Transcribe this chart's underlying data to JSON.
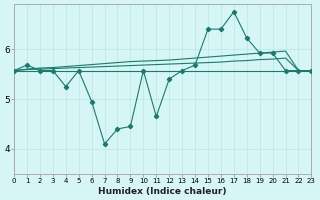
{
  "title": "",
  "xlabel": "Humidex (Indice chaleur)",
  "bg_color": "#d6f5f5",
  "grid_color": "#b8e8e0",
  "line_color": "#1a7a6e",
  "x_range": [
    0,
    23
  ],
  "y_range": [
    3.5,
    6.9
  ],
  "yticks": [
    4,
    5,
    6
  ],
  "xticks": [
    0,
    1,
    2,
    3,
    4,
    5,
    6,
    7,
    8,
    9,
    10,
    11,
    12,
    13,
    14,
    15,
    16,
    17,
    18,
    19,
    20,
    21,
    22,
    23
  ],
  "line_flat": [
    5.57,
    5.57,
    5.57,
    5.57,
    5.57,
    5.57,
    5.57,
    5.57,
    5.57,
    5.57,
    5.57,
    5.57,
    5.57,
    5.57,
    5.57,
    5.57,
    5.57,
    5.57,
    5.57,
    5.57,
    5.57,
    5.57,
    5.57,
    5.57
  ],
  "line_rise1": [
    5.57,
    5.59,
    5.6,
    5.61,
    5.62,
    5.63,
    5.64,
    5.65,
    5.66,
    5.67,
    5.68,
    5.69,
    5.7,
    5.71,
    5.72,
    5.73,
    5.74,
    5.76,
    5.77,
    5.79,
    5.8,
    5.82,
    5.57,
    5.57
  ],
  "line_rise2": [
    5.57,
    5.6,
    5.62,
    5.63,
    5.65,
    5.67,
    5.69,
    5.71,
    5.73,
    5.75,
    5.76,
    5.77,
    5.78,
    5.8,
    5.82,
    5.84,
    5.86,
    5.88,
    5.9,
    5.92,
    5.94,
    5.96,
    5.57,
    5.57
  ],
  "line_main_x": [
    0,
    1,
    2,
    3,
    4,
    5,
    6,
    7,
    8,
    9,
    10,
    11,
    12,
    13,
    14,
    15,
    16,
    17,
    18,
    19,
    20,
    21,
    22,
    23
  ],
  "line_main_y": [
    5.57,
    5.68,
    5.57,
    5.57,
    5.25,
    5.57,
    4.95,
    4.1,
    4.4,
    4.45,
    5.57,
    4.65,
    5.4,
    5.57,
    5.68,
    6.4,
    6.4,
    6.75,
    6.22,
    5.92,
    5.92,
    5.57,
    5.57,
    5.57
  ]
}
